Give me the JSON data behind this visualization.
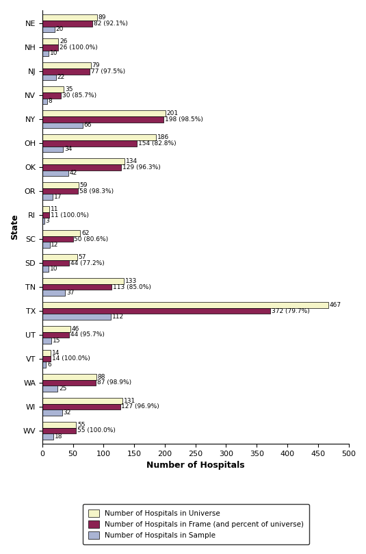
{
  "states": [
    "WV",
    "WI",
    "WA",
    "VT",
    "UT",
    "TX",
    "TN",
    "SD",
    "SC",
    "RI",
    "OR",
    "OK",
    "OH",
    "NY",
    "NV",
    "NJ",
    "NH",
    "NE"
  ],
  "universe": [
    55,
    131,
    88,
    14,
    46,
    467,
    133,
    57,
    62,
    11,
    59,
    134,
    186,
    201,
    35,
    79,
    26,
    89
  ],
  "frame": [
    55,
    127,
    87,
    14,
    44,
    372,
    113,
    44,
    50,
    11,
    58,
    129,
    154,
    198,
    30,
    77,
    26,
    82
  ],
  "frame_pct": [
    "100.0%",
    "96.9%",
    "98.9%",
    "100.0%",
    "95.7%",
    "79.7%",
    "85.0%",
    "77.2%",
    "80.6%",
    "100.0%",
    "98.3%",
    "96.3%",
    "82.8%",
    "98.5%",
    "85.7%",
    "97.5%",
    "100.0%",
    "92.1%"
  ],
  "sample": [
    18,
    32,
    25,
    6,
    15,
    112,
    37,
    10,
    12,
    3,
    17,
    42,
    34,
    66,
    8,
    22,
    10,
    20
  ],
  "color_universe": "#f5f5c8",
  "color_frame": "#8b2252",
  "color_sample": "#aab4d4",
  "xlabel": "Number of Hospitals",
  "ylabel": "State",
  "xlim": [
    0,
    500
  ],
  "xticks": [
    0,
    50,
    100,
    150,
    200,
    250,
    300,
    350,
    400,
    450,
    500
  ],
  "legend_labels": [
    "Number of Hospitals in Universe",
    "Number of Hospitals in Frame (and percent of universe)",
    "Number of Hospitals in Sample"
  ],
  "bar_height": 0.25,
  "figsize": [
    5.35,
    8.09
  ],
  "dpi": 100
}
